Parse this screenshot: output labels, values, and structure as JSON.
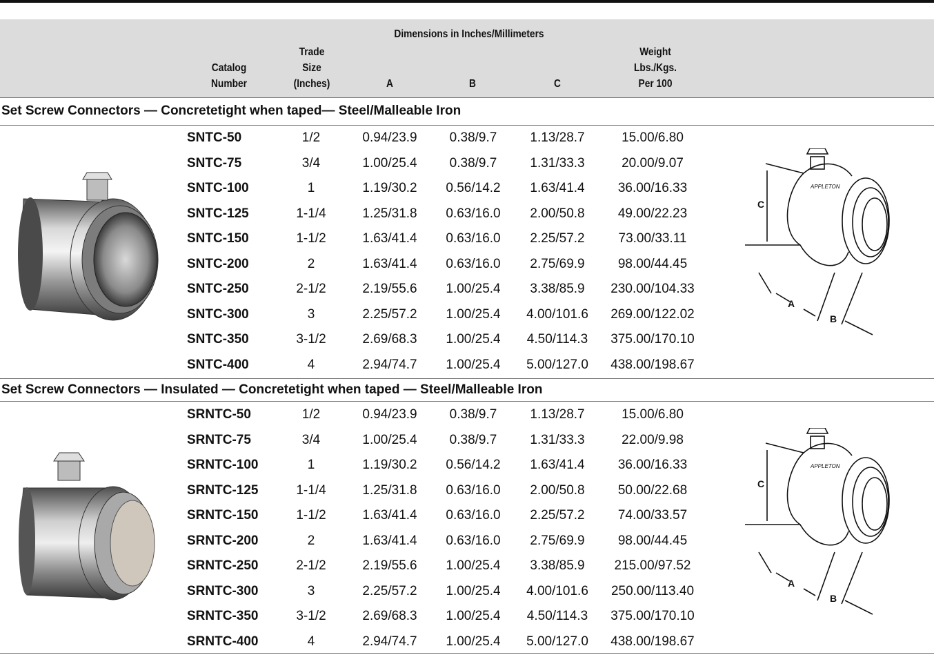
{
  "header": {
    "group_title": "Dimensions in Inches/Millimeters",
    "columns": {
      "catalog": [
        "Catalog",
        "Number"
      ],
      "trade_size": [
        "Trade",
        "Size",
        "(Inches)"
      ],
      "a": "A",
      "b": "B",
      "c": "C",
      "weight": [
        "Weight",
        "Lbs./Kgs.",
        "Per 100"
      ]
    }
  },
  "sections": [
    {
      "title": "Set Screw Connectors — Concretetight when taped— Steel/Malleable Iron",
      "diagram_labels": {
        "brand": "APPLETON",
        "a": "A",
        "b": "B",
        "c": "C"
      },
      "rows": [
        {
          "catalog": "SNTC-50",
          "trade": "1/2",
          "a": "0.94/23.9",
          "b": "0.38/9.7",
          "c": "1.13/28.7",
          "weight": "15.00/6.80"
        },
        {
          "catalog": "SNTC-75",
          "trade": "3/4",
          "a": "1.00/25.4",
          "b": "0.38/9.7",
          "c": "1.31/33.3",
          "weight": "20.00/9.07"
        },
        {
          "catalog": "SNTC-100",
          "trade": "1",
          "a": "1.19/30.2",
          "b": "0.56/14.2",
          "c": "1.63/41.4",
          "weight": "36.00/16.33"
        },
        {
          "catalog": "SNTC-125",
          "trade": "1-1/4",
          "a": "1.25/31.8",
          "b": "0.63/16.0",
          "c": "2.00/50.8",
          "weight": "49.00/22.23"
        },
        {
          "catalog": "SNTC-150",
          "trade": "1-1/2",
          "a": "1.63/41.4",
          "b": "0.63/16.0",
          "c": "2.25/57.2",
          "weight": "73.00/33.11"
        },
        {
          "catalog": "SNTC-200",
          "trade": "2",
          "a": "1.63/41.4",
          "b": "0.63/16.0",
          "c": "2.75/69.9",
          "weight": "98.00/44.45"
        },
        {
          "catalog": "SNTC-250",
          "trade": "2-1/2",
          "a": "2.19/55.6",
          "b": "1.00/25.4",
          "c": "3.38/85.9",
          "weight": "230.00/104.33"
        },
        {
          "catalog": "SNTC-300",
          "trade": "3",
          "a": "2.25/57.2",
          "b": "1.00/25.4",
          "c": "4.00/101.6",
          "weight": "269.00/122.02"
        },
        {
          "catalog": "SNTC-350",
          "trade": "3-1/2",
          "a": "2.69/68.3",
          "b": "1.00/25.4",
          "c": "4.50/114.3",
          "weight": "375.00/170.10"
        },
        {
          "catalog": "SNTC-400",
          "trade": "4",
          "a": "2.94/74.7",
          "b": "1.00/25.4",
          "c": "5.00/127.0",
          "weight": "438.00/198.67"
        }
      ]
    },
    {
      "title": "Set Screw Connectors — Insulated — Concretetight when taped — Steel/Malleable Iron",
      "diagram_labels": {
        "brand": "APPLETON",
        "a": "A",
        "b": "B",
        "c": "C"
      },
      "rows": [
        {
          "catalog": "SRNTC-50",
          "trade": "1/2",
          "a": "0.94/23.9",
          "b": "0.38/9.7",
          "c": "1.13/28.7",
          "weight": "15.00/6.80"
        },
        {
          "catalog": "SRNTC-75",
          "trade": "3/4",
          "a": "1.00/25.4",
          "b": "0.38/9.7",
          "c": "1.31/33.3",
          "weight": "22.00/9.98"
        },
        {
          "catalog": "SRNTC-100",
          "trade": "1",
          "a": "1.19/30.2",
          "b": "0.56/14.2",
          "c": "1.63/41.4",
          "weight": "36.00/16.33"
        },
        {
          "catalog": "SRNTC-125",
          "trade": "1-1/4",
          "a": "1.25/31.8",
          "b": "0.63/16.0",
          "c": "2.00/50.8",
          "weight": "50.00/22.68"
        },
        {
          "catalog": "SRNTC-150",
          "trade": "1-1/2",
          "a": "1.63/41.4",
          "b": "0.63/16.0",
          "c": "2.25/57.2",
          "weight": "74.00/33.57"
        },
        {
          "catalog": "SRNTC-200",
          "trade": "2",
          "a": "1.63/41.4",
          "b": "0.63/16.0",
          "c": "2.75/69.9",
          "weight": "98.00/44.45"
        },
        {
          "catalog": "SRNTC-250",
          "trade": "2-1/2",
          "a": "2.19/55.6",
          "b": "1.00/25.4",
          "c": "3.38/85.9",
          "weight": "215.00/97.52"
        },
        {
          "catalog": "SRNTC-300",
          "trade": "3",
          "a": "2.25/57.2",
          "b": "1.00/25.4",
          "c": "4.00/101.6",
          "weight": "250.00/113.40"
        },
        {
          "catalog": "SRNTC-350",
          "trade": "3-1/2",
          "a": "2.69/68.3",
          "b": "1.00/25.4",
          "c": "4.50/114.3",
          "weight": "375.00/170.10"
        },
        {
          "catalog": "SRNTC-400",
          "trade": "4",
          "a": "2.94/74.7",
          "b": "1.00/25.4",
          "c": "5.00/127.0",
          "weight": "438.00/198.67"
        }
      ]
    }
  ]
}
